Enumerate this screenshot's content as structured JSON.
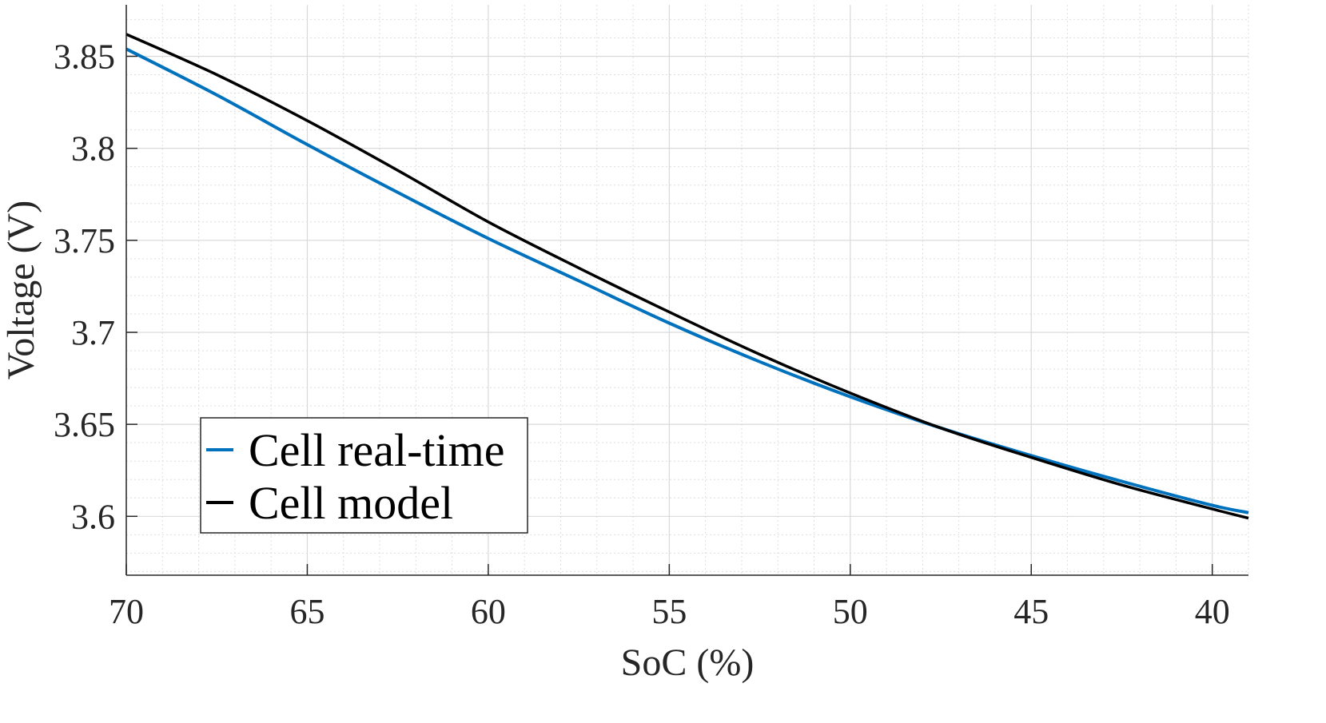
{
  "chart_data": {
    "type": "line",
    "title": "",
    "xlabel": "SoC (%)",
    "ylabel": "Voltage (V)",
    "xlim": [
      70,
      39
    ],
    "x_reversed": true,
    "ylim": [
      3.568,
      3.878
    ],
    "xticks": [
      70,
      65,
      60,
      55,
      50,
      45,
      40
    ],
    "xtick_labels": [
      "70",
      "65",
      "60",
      "55",
      "50",
      "45",
      "40"
    ],
    "yticks": [
      3.6,
      3.65,
      3.7,
      3.75,
      3.8,
      3.85
    ],
    "ytick_labels": [
      "3.6",
      "3.65",
      "3.7",
      "3.75",
      "3.8",
      "3.85"
    ],
    "grid": true,
    "minor_grid": true,
    "legend_position": "bottom-left",
    "x": [
      70,
      67.5,
      65,
      62.5,
      60,
      57.5,
      55,
      52.5,
      50,
      47.5,
      45,
      42.5,
      40,
      39
    ],
    "series": [
      {
        "name": "Cell real-time",
        "color": "#0072bd",
        "values": [
          3.854,
          3.829,
          3.802,
          3.776,
          3.751,
          3.728,
          3.705,
          3.684,
          3.665,
          3.648,
          3.633,
          3.619,
          3.606,
          3.602
        ]
      },
      {
        "name": "Cell model",
        "color": "#000000",
        "values": [
          3.862,
          3.84,
          3.815,
          3.788,
          3.76,
          3.735,
          3.711,
          3.688,
          3.667,
          3.648,
          3.632,
          3.617,
          3.604,
          3.599
        ]
      }
    ]
  }
}
